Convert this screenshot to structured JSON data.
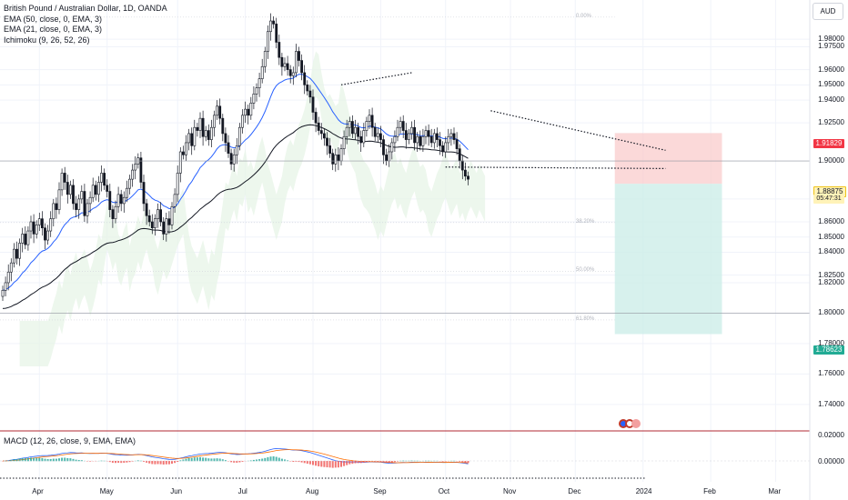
{
  "legend": {
    "title": "British Pound / Australian Dollar, 1D, OANDA",
    "ema50": "EMA (50, close, 0, EMA, 3)",
    "ema21": "EMA (21, close, 0, EMA, 3)",
    "ichimoku": "Ichimoku (9, 26, 52, 26)",
    "macd": "MACD (12, 26, close, 9, EMA, EMA)"
  },
  "currency_button": "AUD",
  "colors": {
    "up": "#131722",
    "down": "#131722",
    "ema21": "#2962ff",
    "ema50": "#131722",
    "cloud": "#e6f4e6",
    "cloud_red": "#fde7e7",
    "stop_zone": "#f9cccc",
    "target_zone": "#cdeee9",
    "macd_line": "#2962ff",
    "signal_line": "#ff6d00",
    "hist_up": "#26a69a",
    "hist_down": "#ef5350",
    "red_tag": "#f23645",
    "green_tag": "#22ab94"
  },
  "chart_data": {
    "type": "candlestick",
    "symbol": "GBPAUD",
    "ylim": [
      1.725,
      1.995
    ],
    "price_axis": [
      "1.98000",
      "1.97500",
      "1.96000",
      "1.95000",
      "1.94000",
      "1.92500",
      "1.90000",
      "1.87500",
      "1.86000",
      "1.85000",
      "1.84000",
      "1.82500",
      "1.82000",
      "1.80000",
      "1.78000",
      "1.76000",
      "1.74000"
    ],
    "price_axis_values": [
      1.98,
      1.975,
      1.96,
      1.95,
      1.94,
      1.925,
      1.9,
      1.875,
      1.86,
      1.85,
      1.84,
      1.825,
      1.82,
      1.8,
      1.78,
      1.76,
      1.74
    ],
    "x_axis": [
      "Apr",
      "May",
      "Jun",
      "Jul",
      "Aug",
      "Sep",
      "Oct",
      "Nov",
      "Dec",
      "2024",
      "Feb",
      "Mar"
    ],
    "x_axis_index": [
      13,
      37,
      62,
      86,
      110,
      134,
      157,
      180,
      203,
      227,
      251,
      274
    ],
    "tags": {
      "upper": "1.91829",
      "current": "1.88875",
      "countdown": "05:47:31",
      "lower": "1.78623"
    },
    "fib_labels": [
      "0.00%",
      "38.20%",
      "50.00%",
      "61.80%"
    ],
    "fib_values": [
      1.9945,
      1.8595,
      1.8275,
      1.7955
    ],
    "position": {
      "entry": 1.885,
      "stop": 1.91829,
      "target": 1.78623,
      "start_index": 217,
      "end_index": 255
    },
    "closes": [
      1.815,
      1.82,
      1.827,
      1.833,
      1.842,
      1.836,
      1.846,
      1.852,
      1.845,
      1.854,
      1.86,
      1.852,
      1.858,
      1.862,
      1.856,
      1.848,
      1.854,
      1.862,
      1.872,
      1.868,
      1.881,
      1.892,
      1.886,
      1.878,
      1.884,
      1.872,
      1.868,
      1.875,
      1.88,
      1.864,
      1.872,
      1.876,
      1.884,
      1.878,
      1.886,
      1.892,
      1.884,
      1.88,
      1.868,
      1.862,
      1.87,
      1.878,
      1.872,
      1.876,
      1.882,
      1.888,
      1.894,
      1.898,
      1.902,
      1.886,
      1.872,
      1.864,
      1.86,
      1.856,
      1.862,
      1.868,
      1.86,
      1.852,
      1.862,
      1.858,
      1.87,
      1.878,
      1.892,
      1.906,
      1.904,
      1.912,
      1.918,
      1.91,
      1.922,
      1.92,
      1.928,
      1.916,
      1.92,
      1.914,
      1.922,
      1.93,
      1.936,
      1.928,
      1.918,
      1.912,
      1.905,
      1.898,
      1.904,
      1.91,
      1.922,
      1.93,
      1.934,
      1.93,
      1.938,
      1.944,
      1.948,
      1.954,
      1.962,
      1.972,
      1.985,
      1.992,
      1.99,
      1.978,
      1.968,
      1.962,
      1.964,
      1.96,
      1.956,
      1.958,
      1.972,
      1.966,
      1.958,
      1.95,
      1.946,
      1.942,
      1.932,
      1.925,
      1.92,
      1.918,
      1.915,
      1.91,
      1.905,
      1.898,
      1.904,
      1.9,
      1.908,
      1.916,
      1.922,
      1.926,
      1.918,
      1.922,
      1.916,
      1.912,
      1.92,
      1.926,
      1.93,
      1.922,
      1.916,
      1.918,
      1.914,
      1.904,
      1.9,
      1.906,
      1.912,
      1.916,
      1.922,
      1.926,
      1.92,
      1.914,
      1.918,
      1.922,
      1.912,
      1.916,
      1.91,
      1.916,
      1.92,
      1.916,
      1.912,
      1.918,
      1.914,
      1.91,
      1.906,
      1.912,
      1.916,
      1.918,
      1.914,
      1.908,
      1.9,
      1.894,
      1.89,
      1.888
    ]
  },
  "macd_axis": [
    "0.02000",
    "0.00000"
  ],
  "macd_axis_values": [
    0.02,
    0.0
  ]
}
